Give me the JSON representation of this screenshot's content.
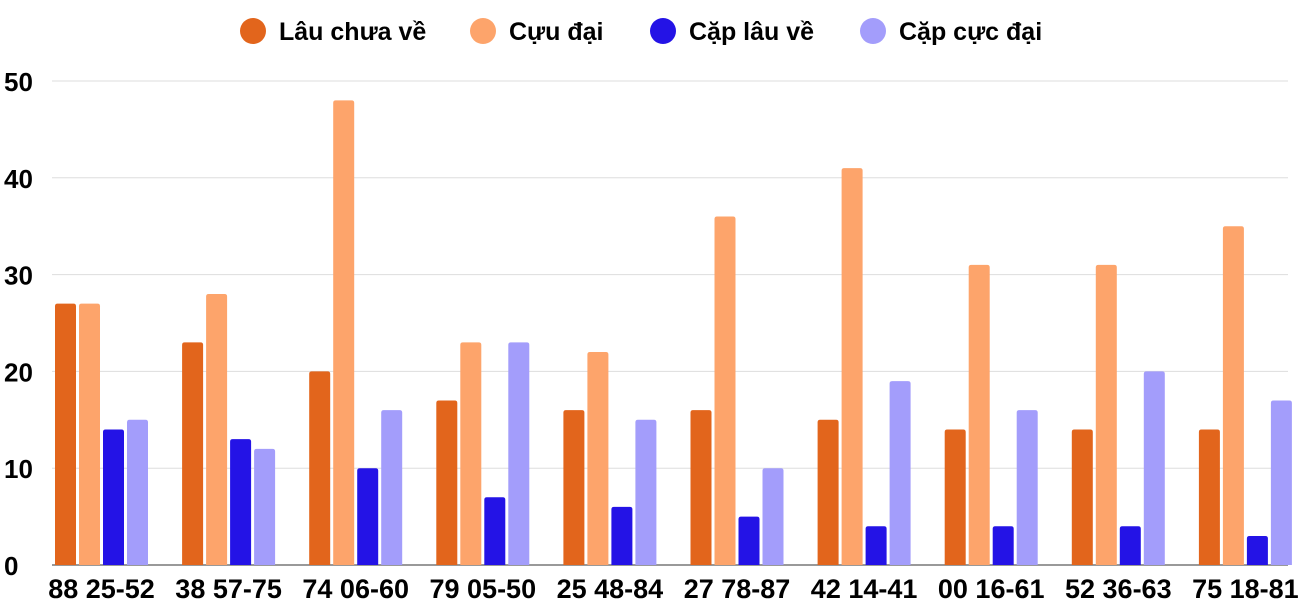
{
  "chart_data": {
    "type": "bar",
    "title": "",
    "xlabel": "",
    "ylabel": "",
    "ylim": [
      0,
      50
    ],
    "yticks": [
      0,
      10,
      20,
      30,
      40,
      50
    ],
    "grid": true,
    "legend_position": "top-center",
    "categories": [
      "88 25-52",
      "38 57-75",
      "74 06-60",
      "79 05-50",
      "25 48-84",
      "27 78-87",
      "42 14-41",
      "00 16-61",
      "52 36-63",
      "75 18-81"
    ],
    "series": [
      {
        "name": "Lâu chưa về",
        "color": "#e2651c",
        "values": [
          27,
          23,
          20,
          17,
          16,
          16,
          15,
          14,
          14,
          14
        ]
      },
      {
        "name": "Cựu đại",
        "color": "#fda46b",
        "values": [
          27,
          28,
          48,
          23,
          22,
          36,
          41,
          31,
          31,
          35
        ]
      },
      {
        "name": "Cặp lâu về",
        "color": "#2413e6",
        "values": [
          14,
          13,
          10,
          7,
          6,
          5,
          4,
          4,
          4,
          3
        ]
      },
      {
        "name": "Cặp cực đại",
        "color": "#a39dfb",
        "values": [
          15,
          12,
          16,
          23,
          15,
          10,
          19,
          16,
          20,
          17
        ]
      }
    ]
  }
}
